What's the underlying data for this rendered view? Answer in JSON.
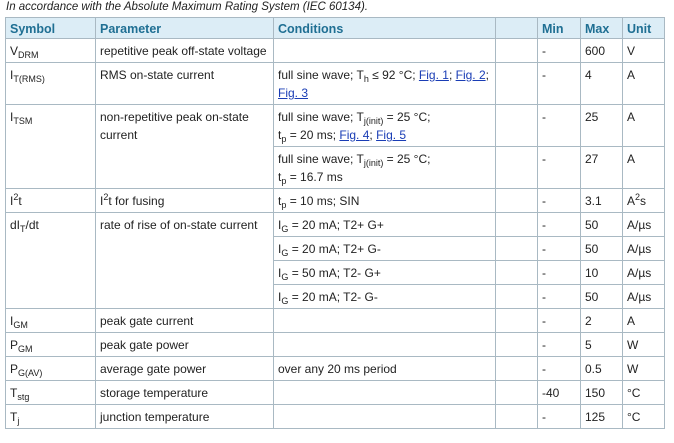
{
  "caption": "In accordance with the Absolute Maximum Rating System (IEC 60134).",
  "headers": {
    "symbol": "Symbol",
    "parameter": "Parameter",
    "conditions": "Conditions",
    "blank": "",
    "min": "Min",
    "max": "Max",
    "unit": "Unit"
  },
  "colors": {
    "header_bg": "#dcedf6",
    "header_text": "#1f6f93",
    "link": "#1a3db5",
    "border": "#a9b9c3"
  },
  "rows": [
    {
      "symbol": [
        {
          "t": "V"
        },
        {
          "sub": "DRM"
        }
      ],
      "parameter": [
        {
          "t": "repetitive peak off-state voltage"
        }
      ],
      "lines": [
        {
          "cond": [],
          "min": "-",
          "max": "600",
          "unit": [
            {
              "t": "V"
            }
          ]
        }
      ]
    },
    {
      "symbol": [
        {
          "t": "I"
        },
        {
          "sub": "T(RMS)"
        }
      ],
      "parameter": [
        {
          "t": "RMS on-state current"
        }
      ],
      "lines": [
        {
          "cond": [
            {
              "t": "full sine wave; T"
            },
            {
              "sub": "h"
            },
            {
              "t": " ≤ 92 °C; "
            },
            {
              "link": "Fig. 1"
            },
            {
              "t": "; "
            },
            {
              "link": "Fig. 2"
            },
            {
              "t": ";"
            },
            {
              "br": true
            },
            {
              "link": "Fig. 3"
            }
          ],
          "min": "-",
          "max": "4",
          "unit": [
            {
              "t": "A"
            }
          ]
        }
      ]
    },
    {
      "symbol": [
        {
          "t": "I"
        },
        {
          "sub": "TSM"
        }
      ],
      "parameter": [
        {
          "t": "non-repetitive peak on-state"
        },
        {
          "br": true
        },
        {
          "t": "current"
        }
      ],
      "lines": [
        {
          "cond": [
            {
              "t": "full sine wave; T"
            },
            {
              "sub": "j(init)"
            },
            {
              "t": " = 25 °C;"
            },
            {
              "br": true
            },
            {
              "t": "t"
            },
            {
              "sub": "p"
            },
            {
              "t": " = 20 ms; "
            },
            {
              "link": "Fig. 4"
            },
            {
              "t": "; "
            },
            {
              "link": "Fig. 5"
            }
          ],
          "min": "-",
          "max": "25",
          "unit": [
            {
              "t": "A"
            }
          ]
        },
        {
          "cond": [
            {
              "t": "full sine wave; T"
            },
            {
              "sub": "j(init)"
            },
            {
              "t": " = 25 °C;"
            },
            {
              "br": true
            },
            {
              "t": "t"
            },
            {
              "sub": "p"
            },
            {
              "t": " = 16.7 ms"
            }
          ],
          "min": "-",
          "max": "27",
          "unit": [
            {
              "t": "A"
            }
          ]
        }
      ]
    },
    {
      "symbol": [
        {
          "t": "I"
        },
        {
          "sup": "2"
        },
        {
          "t": "t"
        }
      ],
      "parameter": [
        {
          "t": "I"
        },
        {
          "sup": "2"
        },
        {
          "t": "t for fusing"
        }
      ],
      "lines": [
        {
          "cond": [
            {
              "t": "t"
            },
            {
              "sub": "p"
            },
            {
              "t": " = 10 ms; SIN"
            }
          ],
          "min": "-",
          "max": "3.1",
          "unit": [
            {
              "t": "A"
            },
            {
              "sup": "2"
            },
            {
              "t": "s"
            }
          ]
        }
      ]
    },
    {
      "symbol": [
        {
          "t": "dI"
        },
        {
          "sub": "T"
        },
        {
          "t": "/dt"
        }
      ],
      "parameter": [
        {
          "t": "rate of rise of on-state current"
        }
      ],
      "lines": [
        {
          "cond": [
            {
              "t": "I"
            },
            {
              "sub": "G"
            },
            {
              "t": " = 20 mA; T2+ G+"
            }
          ],
          "min": "-",
          "max": "50",
          "unit": [
            {
              "t": "A/µs"
            }
          ]
        },
        {
          "cond": [
            {
              "t": "I"
            },
            {
              "sub": "G"
            },
            {
              "t": " = 20 mA; T2+ G-"
            }
          ],
          "min": "-",
          "max": "50",
          "unit": [
            {
              "t": "A/µs"
            }
          ]
        },
        {
          "cond": [
            {
              "t": "I"
            },
            {
              "sub": "G"
            },
            {
              "t": " = 50 mA; T2- G+"
            }
          ],
          "min": "-",
          "max": "10",
          "unit": [
            {
              "t": "A/µs"
            }
          ]
        },
        {
          "cond": [
            {
              "t": "I"
            },
            {
              "sub": "G"
            },
            {
              "t": " = 20 mA; T2- G-"
            }
          ],
          "min": "-",
          "max": "50",
          "unit": [
            {
              "t": "A/µs"
            }
          ]
        }
      ]
    },
    {
      "symbol": [
        {
          "t": "I"
        },
        {
          "sub": "GM"
        }
      ],
      "parameter": [
        {
          "t": "peak gate current"
        }
      ],
      "lines": [
        {
          "cond": [],
          "min": "-",
          "max": "2",
          "unit": [
            {
              "t": "A"
            }
          ]
        }
      ]
    },
    {
      "symbol": [
        {
          "t": "P"
        },
        {
          "sub": "GM"
        }
      ],
      "parameter": [
        {
          "t": "peak gate power"
        }
      ],
      "lines": [
        {
          "cond": [],
          "min": "-",
          "max": "5",
          "unit": [
            {
              "t": "W"
            }
          ]
        }
      ]
    },
    {
      "symbol": [
        {
          "t": "P"
        },
        {
          "sub": "G(AV)"
        }
      ],
      "parameter": [
        {
          "t": "average gate power"
        }
      ],
      "lines": [
        {
          "cond": [
            {
              "t": "over any 20 ms period"
            }
          ],
          "min": "-",
          "max": "0.5",
          "unit": [
            {
              "t": "W"
            }
          ]
        }
      ]
    },
    {
      "symbol": [
        {
          "t": "T"
        },
        {
          "sub": "stg"
        }
      ],
      "parameter": [
        {
          "t": "storage temperature"
        }
      ],
      "lines": [
        {
          "cond": [],
          "min": "-40",
          "max": "150",
          "unit": [
            {
              "t": "°C"
            }
          ]
        }
      ]
    },
    {
      "symbol": [
        {
          "t": "T"
        },
        {
          "sub": "j"
        }
      ],
      "parameter": [
        {
          "t": "junction temperature"
        }
      ],
      "lines": [
        {
          "cond": [],
          "min": "-",
          "max": "125",
          "unit": [
            {
              "t": "°C"
            }
          ]
        }
      ]
    }
  ]
}
